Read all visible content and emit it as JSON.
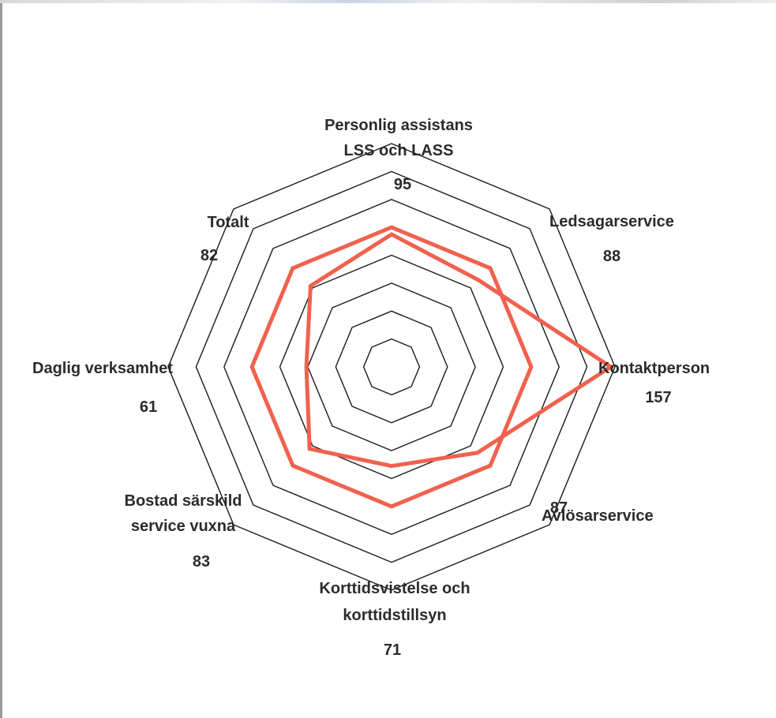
{
  "chart_data": {
    "type": "radar",
    "title": "",
    "categories": [
      {
        "lines": [
          "Personlig assistans",
          "LSS och LASS"
        ],
        "value_label": "95"
      },
      {
        "lines": [
          "Ledsagarservice"
        ],
        "value_label": "88"
      },
      {
        "lines": [
          "Kontaktperson"
        ],
        "value_label": "157"
      },
      {
        "lines": [
          "Avlösarservice"
        ],
        "value_label": "87"
      },
      {
        "lines": [
          "Korttidsvistelse och",
          "korttidstillsyn"
        ],
        "value_label": "71"
      },
      {
        "lines": [
          "Bostad särskild",
          "service vuxna"
        ],
        "value_label": "83"
      },
      {
        "lines": [
          "Daglig verksamhet"
        ],
        "value_label": "61"
      },
      {
        "lines": [
          "Totalt"
        ],
        "value_label": "82"
      }
    ],
    "series": [
      {
        "values": [
          95,
          88,
          157,
          87,
          71,
          83,
          61,
          82
        ],
        "color": "#f0614e",
        "width": 5
      },
      {
        "values": [
          100,
          100,
          100,
          100,
          100,
          100,
          100,
          100
        ],
        "color": "#f0614e",
        "width": 5
      }
    ],
    "rlim": [
      0,
      160
    ],
    "grid_rings": [
      20,
      40,
      60,
      80,
      100,
      120,
      140,
      160
    ],
    "grid": true,
    "legend": "none"
  }
}
